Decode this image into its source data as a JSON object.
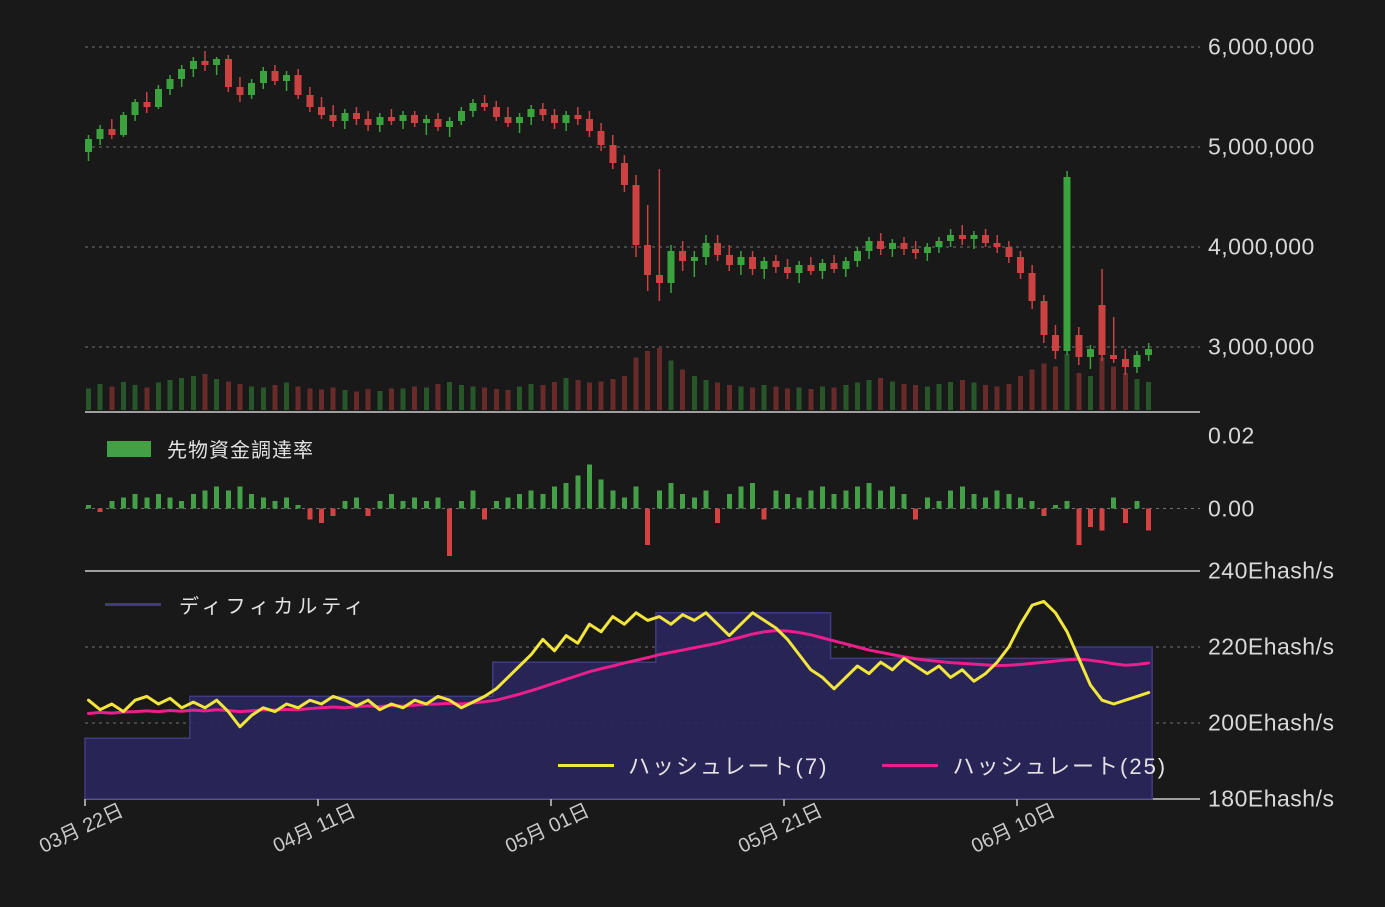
{
  "colors": {
    "background": "#191919",
    "bull": "#3aa33e",
    "bear": "#cc4141",
    "funding_positive": "#43a047",
    "funding_negative": "#d54242",
    "hashrate7": "#f2e63c",
    "hashrate25": "#ea1e8c",
    "difficulty_fill": "#29255a",
    "difficulty_stroke": "#413b82",
    "grid_dashed": "#bbbbbb",
    "grid_solid": "#9f9f9f",
    "axis_text": "#d9d9d9"
  },
  "legends": {
    "funding": {
      "label": "先物資金調達率"
    },
    "difficulty": {
      "label": "ディフィカルティ"
    },
    "hashrate7": {
      "label": "ハッシュレート(7)"
    },
    "hashrate25": {
      "label": "ハッシュレート(25)"
    }
  },
  "x_axis": {
    "ticks": [
      {
        "label": "03月 22日",
        "day": 0
      },
      {
        "label": "04月 11日",
        "day": 20
      },
      {
        "label": "05月 01日",
        "day": 40
      },
      {
        "label": "05月 21日",
        "day": 60
      },
      {
        "label": "06月 10日",
        "day": 80
      }
    ]
  },
  "chart_data": [
    {
      "type": "candlestick",
      "name": "price",
      "y_unit": "JPY",
      "unit_scale": 1000000,
      "y_axis": {
        "ticks": [
          {
            "label": "6,000,000",
            "value": 6000000
          },
          {
            "label": "5,000,000",
            "value": 5000000
          },
          {
            "label": "4,000,000",
            "value": 4000000
          },
          {
            "label": "3,000,000",
            "value": 3000000
          }
        ]
      },
      "ohlc_millions": [
        [
          4.95,
          5.12,
          4.86,
          5.08
        ],
        [
          5.08,
          5.22,
          5.02,
          5.18
        ],
        [
          5.18,
          5.28,
          5.08,
          5.12
        ],
        [
          5.12,
          5.35,
          5.1,
          5.32
        ],
        [
          5.32,
          5.48,
          5.26,
          5.45
        ],
        [
          5.45,
          5.55,
          5.34,
          5.4
        ],
        [
          5.4,
          5.62,
          5.38,
          5.58
        ],
        [
          5.58,
          5.72,
          5.52,
          5.68
        ],
        [
          5.68,
          5.82,
          5.6,
          5.78
        ],
        [
          5.78,
          5.9,
          5.7,
          5.86
        ],
        [
          5.86,
          5.96,
          5.76,
          5.82
        ],
        [
          5.82,
          5.9,
          5.72,
          5.88
        ],
        [
          5.88,
          5.92,
          5.55,
          5.6
        ],
        [
          5.6,
          5.7,
          5.45,
          5.52
        ],
        [
          5.52,
          5.68,
          5.48,
          5.64
        ],
        [
          5.64,
          5.8,
          5.58,
          5.76
        ],
        [
          5.76,
          5.82,
          5.62,
          5.66
        ],
        [
          5.66,
          5.76,
          5.56,
          5.72
        ],
        [
          5.72,
          5.78,
          5.48,
          5.52
        ],
        [
          5.52,
          5.6,
          5.35,
          5.4
        ],
        [
          5.4,
          5.5,
          5.28,
          5.32
        ],
        [
          5.32,
          5.42,
          5.2,
          5.26
        ],
        [
          5.26,
          5.38,
          5.18,
          5.34
        ],
        [
          5.34,
          5.4,
          5.22,
          5.28
        ],
        [
          5.28,
          5.36,
          5.16,
          5.22
        ],
        [
          5.22,
          5.34,
          5.15,
          5.3
        ],
        [
          5.3,
          5.38,
          5.22,
          5.26
        ],
        [
          5.26,
          5.36,
          5.18,
          5.32
        ],
        [
          5.32,
          5.36,
          5.2,
          5.24
        ],
        [
          5.24,
          5.32,
          5.12,
          5.28
        ],
        [
          5.28,
          5.34,
          5.16,
          5.2
        ],
        [
          5.2,
          5.3,
          5.1,
          5.26
        ],
        [
          5.26,
          5.4,
          5.22,
          5.36
        ],
        [
          5.36,
          5.48,
          5.3,
          5.44
        ],
        [
          5.44,
          5.52,
          5.36,
          5.4
        ],
        [
          5.4,
          5.46,
          5.26,
          5.3
        ],
        [
          5.3,
          5.4,
          5.2,
          5.24
        ],
        [
          5.24,
          5.34,
          5.14,
          5.3
        ],
        [
          5.3,
          5.42,
          5.22,
          5.38
        ],
        [
          5.38,
          5.44,
          5.26,
          5.32
        ],
        [
          5.32,
          5.38,
          5.18,
          5.24
        ],
        [
          5.24,
          5.36,
          5.16,
          5.32
        ],
        [
          5.32,
          5.4,
          5.22,
          5.28
        ],
        [
          5.28,
          5.36,
          5.1,
          5.16
        ],
        [
          5.16,
          5.24,
          4.96,
          5.02
        ],
        [
          5.02,
          5.12,
          4.78,
          4.84
        ],
        [
          4.84,
          4.92,
          4.55,
          4.62
        ],
        [
          4.62,
          4.72,
          3.9,
          4.02
        ],
        [
          4.02,
          4.42,
          3.56,
          3.72
        ],
        [
          3.72,
          4.78,
          3.46,
          3.64
        ],
        [
          3.64,
          4.02,
          3.54,
          3.96
        ],
        [
          3.96,
          4.06,
          3.76,
          3.86
        ],
        [
          3.86,
          3.96,
          3.7,
          3.9
        ],
        [
          3.9,
          4.12,
          3.82,
          4.04
        ],
        [
          4.04,
          4.12,
          3.86,
          3.92
        ],
        [
          3.92,
          4.02,
          3.76,
          3.82
        ],
        [
          3.82,
          3.96,
          3.72,
          3.9
        ],
        [
          3.9,
          3.96,
          3.72,
          3.78
        ],
        [
          3.78,
          3.9,
          3.68,
          3.86
        ],
        [
          3.86,
          3.92,
          3.74,
          3.8
        ],
        [
          3.8,
          3.88,
          3.68,
          3.74
        ],
        [
          3.74,
          3.86,
          3.64,
          3.82
        ],
        [
          3.82,
          3.9,
          3.72,
          3.76
        ],
        [
          3.76,
          3.88,
          3.68,
          3.84
        ],
        [
          3.84,
          3.92,
          3.74,
          3.78
        ],
        [
          3.78,
          3.9,
          3.7,
          3.86
        ],
        [
          3.86,
          4.0,
          3.8,
          3.96
        ],
        [
          3.96,
          4.1,
          3.88,
          4.06
        ],
        [
          4.06,
          4.14,
          3.92,
          3.98
        ],
        [
          3.98,
          4.08,
          3.9,
          4.04
        ],
        [
          4.04,
          4.1,
          3.92,
          3.98
        ],
        [
          3.98,
          4.06,
          3.88,
          3.94
        ],
        [
          3.94,
          4.04,
          3.86,
          4.0
        ],
        [
          4.0,
          4.1,
          3.94,
          4.06
        ],
        [
          4.06,
          4.18,
          4.0,
          4.12
        ],
        [
          4.12,
          4.22,
          4.02,
          4.08
        ],
        [
          4.08,
          4.16,
          3.98,
          4.12
        ],
        [
          4.12,
          4.18,
          4.0,
          4.04
        ],
        [
          4.04,
          4.12,
          3.94,
          4.0
        ],
        [
          4.0,
          4.06,
          3.84,
          3.9
        ],
        [
          3.9,
          3.96,
          3.68,
          3.74
        ],
        [
          3.74,
          3.82,
          3.38,
          3.46
        ],
        [
          3.46,
          3.52,
          3.04,
          3.12
        ],
        [
          3.12,
          3.22,
          2.88,
          2.96
        ],
        [
          2.96,
          4.76,
          2.92,
          4.7
        ],
        [
          3.12,
          3.2,
          2.82,
          2.9
        ],
        [
          2.9,
          3.02,
          2.78,
          2.98
        ],
        [
          3.42,
          3.78,
          2.86,
          2.92
        ],
        [
          2.92,
          3.3,
          2.84,
          2.88
        ],
        [
          2.88,
          2.98,
          2.72,
          2.8
        ],
        [
          2.8,
          2.96,
          2.74,
          2.92
        ],
        [
          2.92,
          3.04,
          2.86,
          2.98
        ]
      ],
      "volume_relative": [
        35,
        42,
        38,
        45,
        40,
        36,
        44,
        48,
        52,
        55,
        58,
        50,
        46,
        42,
        38,
        36,
        40,
        44,
        38,
        35,
        33,
        36,
        32,
        30,
        34,
        31,
        35,
        35,
        38,
        36,
        42,
        45,
        40,
        38,
        36,
        34,
        32,
        38,
        42,
        40,
        45,
        52,
        48,
        44,
        46,
        50,
        55,
        85,
        95,
        100,
        80,
        65,
        55,
        48,
        44,
        40,
        38,
        36,
        40,
        38,
        35,
        36,
        34,
        38,
        36,
        40,
        44,
        48,
        52,
        46,
        42,
        40,
        38,
        42,
        45,
        48,
        44,
        40,
        38,
        42,
        55,
        65,
        75,
        70,
        90,
        60,
        55,
        85,
        70,
        60,
        50,
        45
      ]
    },
    {
      "type": "bar",
      "name": "先物資金調達率",
      "y_axis": {
        "ticks": [
          {
            "label": "0.02",
            "value": 0.02
          },
          {
            "label": "0.00",
            "value": 0
          }
        ]
      },
      "values": [
        0.001,
        -0.001,
        0.002,
        0.003,
        0.004,
        0.003,
        0.004,
        0.003,
        0.002,
        0.004,
        0.005,
        0.006,
        0.005,
        0.006,
        0.004,
        0.003,
        0.002,
        0.003,
        0.001,
        -0.003,
        -0.004,
        -0.002,
        0.002,
        0.003,
        -0.002,
        0.002,
        0.004,
        0.002,
        0.003,
        0.002,
        0.003,
        -0.013,
        0.002,
        0.005,
        -0.003,
        0.002,
        0.003,
        0.004,
        0.005,
        0.004,
        0.006,
        0.007,
        0.009,
        0.012,
        0.008,
        0.005,
        0.003,
        0.006,
        -0.01,
        0.005,
        0.007,
        0.004,
        0.003,
        0.005,
        -0.004,
        0.004,
        0.006,
        0.007,
        -0.003,
        0.005,
        0.004,
        0.003,
        0.005,
        0.006,
        0.004,
        0.005,
        0.006,
        0.007,
        0.005,
        0.006,
        0.004,
        -0.003,
        0.003,
        0.002,
        0.005,
        0.006,
        0.004,
        0.003,
        0.005,
        0.004,
        0.003,
        0.002,
        -0.002,
        0.001,
        0.002,
        -0.01,
        -0.005,
        -0.006,
        0.003,
        -0.004,
        0.002,
        -0.006
      ]
    },
    {
      "type": "line",
      "name": "hashrate-difficulty",
      "y_unit": "Ehash/s",
      "y_axis": {
        "ticks": [
          {
            "label": "240Ehash/s",
            "value": 240
          },
          {
            "label": "220Ehash/s",
            "value": 220
          },
          {
            "label": "200Ehash/s",
            "value": 200
          },
          {
            "label": "180Ehash/s",
            "value": 180
          }
        ]
      },
      "series": [
        {
          "name": "ディフィカルティ",
          "type": "step-area",
          "steps": [
            [
              0,
              196
            ],
            [
              9,
              207
            ],
            [
              35,
              216
            ],
            [
              49,
              229
            ],
            [
              64,
              217
            ],
            [
              85,
              220
            ]
          ],
          "end_day": 91
        },
        {
          "name": "ハッシュレート(7)",
          "type": "line",
          "values": [
            206,
            203.5,
            205,
            203,
            206,
            207,
            205,
            206.5,
            204,
            205.5,
            204,
            206,
            203,
            199,
            202,
            204,
            203,
            205,
            204,
            206,
            205,
            207,
            206,
            204.5,
            206,
            203.5,
            205,
            204,
            206,
            205,
            207,
            206,
            204,
            205.5,
            207,
            209,
            212,
            215,
            218,
            222,
            219,
            223,
            221,
            226,
            224,
            228,
            226,
            229,
            227,
            228,
            226,
            228.5,
            227,
            229,
            226,
            223,
            226,
            229,
            227,
            225,
            222,
            218,
            214,
            212,
            209,
            212,
            215,
            213,
            216,
            214,
            217,
            215,
            213,
            215,
            212,
            214,
            211,
            213,
            216,
            220,
            226,
            231,
            232,
            229,
            224,
            217,
            210,
            206,
            205,
            206,
            207,
            208
          ]
        },
        {
          "name": "ハッシュレート(25)",
          "type": "line",
          "values": [
            202.5,
            202.8,
            202.6,
            202.9,
            203,
            203.2,
            203,
            203.3,
            203.1,
            203.4,
            203.2,
            203.5,
            203.3,
            203,
            203.2,
            203.5,
            203.4,
            203.6,
            203.5,
            203.8,
            204,
            204.2,
            204,
            204.3,
            204.5,
            204.3,
            204.6,
            204.4,
            204.7,
            204.9,
            205,
            205.2,
            205,
            205.3,
            205.6,
            206,
            206.8,
            207.6,
            208.5,
            209.5,
            210.5,
            211.5,
            212.5,
            213.5,
            214.3,
            215,
            215.8,
            216.5,
            217.2,
            218,
            218.6,
            219.2,
            219.8,
            220.4,
            221,
            221.8,
            222.6,
            223.4,
            224,
            224.3,
            224.2,
            223.8,
            223.2,
            222.4,
            221.6,
            220.8,
            220,
            219.2,
            218.6,
            218,
            217.4,
            216.9,
            216.5,
            216.2,
            215.9,
            215.7,
            215.5,
            215.3,
            215.1,
            215.2,
            215.4,
            215.7,
            216,
            216.3,
            216.6,
            216.8,
            216.5,
            216.1,
            215.6,
            215.2,
            215.4,
            215.8
          ]
        }
      ]
    }
  ]
}
